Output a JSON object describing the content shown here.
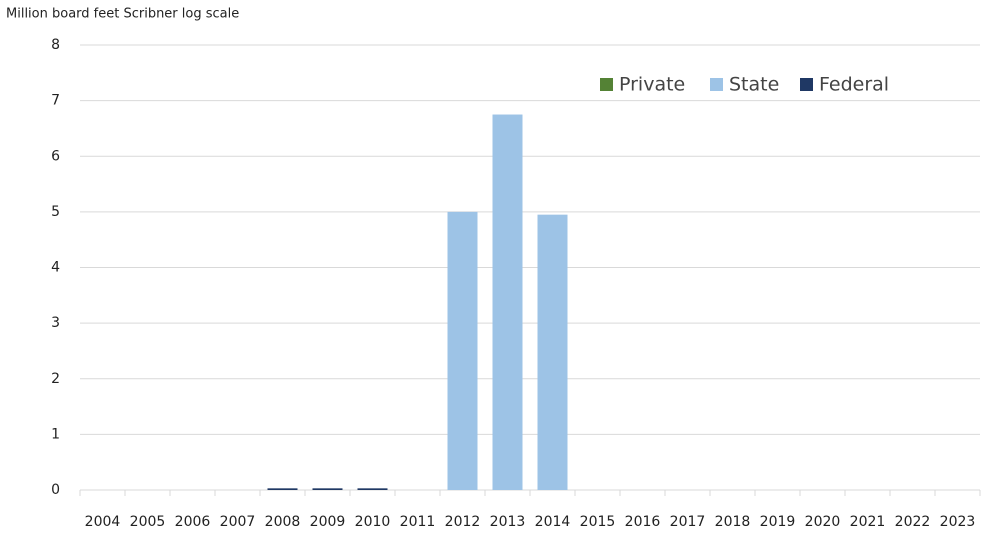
{
  "chart_data": {
    "type": "bar",
    "stacked": true,
    "y_label": "Million board feet Scribner log scale",
    "categories": [
      "2004",
      "2005",
      "2006",
      "2007",
      "2008",
      "2009",
      "2010",
      "2011",
      "2012",
      "2013",
      "2014",
      "2015",
      "2016",
      "2017",
      "2018",
      "2019",
      "2020",
      "2021",
      "2022",
      "2023"
    ],
    "series": [
      {
        "name": "Private",
        "color": "#548235",
        "values": [
          0,
          0,
          0,
          0,
          0,
          0,
          0,
          0,
          0,
          0,
          0,
          0,
          0,
          0,
          0,
          0,
          0,
          0,
          0,
          0
        ]
      },
      {
        "name": "State",
        "color": "#9dc3e6",
        "values": [
          0,
          0,
          0,
          0,
          0,
          0,
          0,
          0,
          5.0,
          6.75,
          4.95,
          0,
          0,
          0,
          0,
          0,
          0,
          0,
          0,
          0
        ]
      },
      {
        "name": "Federal",
        "color": "#1f3864",
        "values": [
          0,
          0,
          0,
          0,
          0.03,
          0.03,
          0.03,
          0,
          0,
          0,
          0,
          0,
          0,
          0,
          0,
          0,
          0,
          0,
          0,
          0
        ]
      }
    ],
    "ylim": [
      0,
      8
    ],
    "yticks": [
      0,
      1,
      2,
      3,
      4,
      5,
      6,
      7,
      8
    ],
    "grid": true,
    "legend": "top-right"
  }
}
